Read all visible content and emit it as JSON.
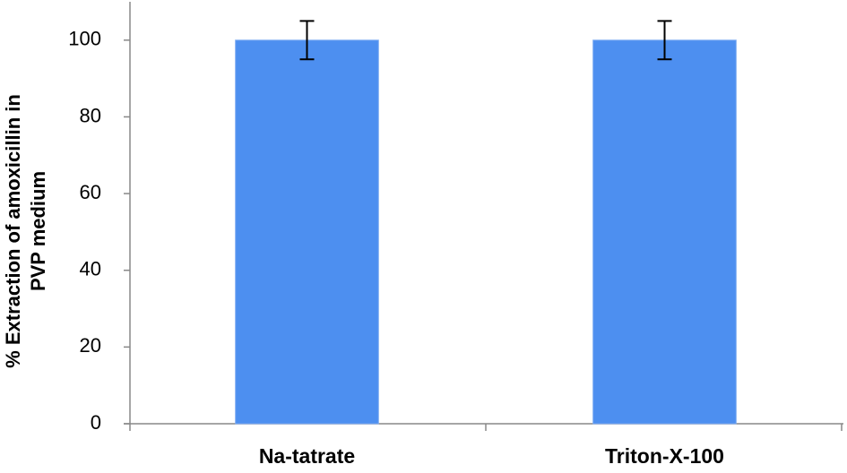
{
  "chart_data": {
    "type": "bar",
    "y_label": [
      "% Extraction of amoxicillin in",
      "PVP medium"
    ],
    "categories": [
      "Na-tatrate",
      "Triton-X-100"
    ],
    "values": [
      100,
      100
    ],
    "errors": [
      5,
      5
    ],
    "color": "#4d8ff0",
    "ylim": [
      0,
      110
    ],
    "yticks": [
      0,
      20,
      40,
      60,
      80,
      100
    ],
    "grid": false
  }
}
